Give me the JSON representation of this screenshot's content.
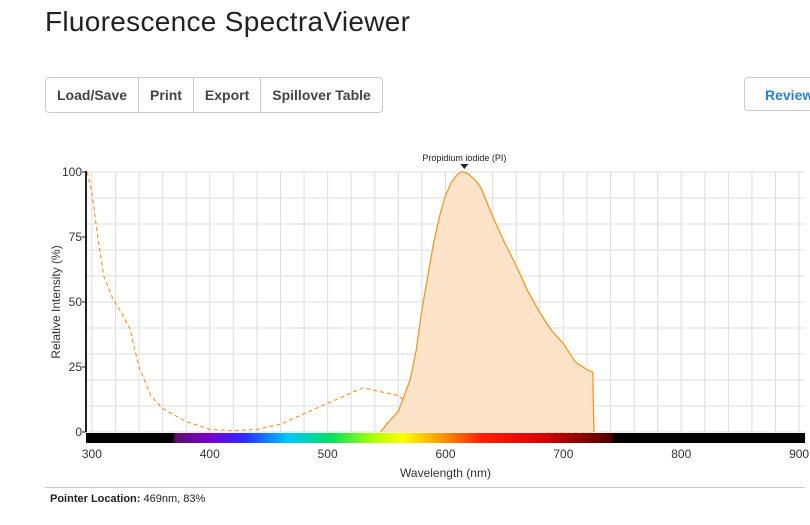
{
  "app": {
    "title": "Fluorescence SpectraViewer"
  },
  "toolbar": {
    "buttons": [
      "Load/Save",
      "Print",
      "Export",
      "Spillover Table"
    ],
    "review_label": "Review"
  },
  "pointer": {
    "label": "Pointer Location:",
    "value": "469nm, 83%"
  },
  "chart_data": {
    "type": "area",
    "xlabel": "Wavelength (nm)",
    "ylabel": "Relative Intensity (%)",
    "xlim": [
      295,
      905
    ],
    "ylim": [
      0,
      100
    ],
    "xticks": [
      300,
      400,
      500,
      600,
      700,
      800,
      900
    ],
    "yticks": [
      0,
      25,
      50,
      75,
      100
    ],
    "grid": true,
    "marker_label": "Propidium iodide (PI)",
    "marker_x": 616,
    "series_color": "#f0921e",
    "fill_color": "#fde3c8",
    "series": [
      {
        "style": "dashed",
        "x": [
          296,
          300,
          305,
          310,
          318,
          325,
          332,
          340,
          350,
          360,
          380,
          400,
          420,
          440,
          460,
          480,
          500,
          520,
          530,
          540,
          550,
          560,
          570,
          580,
          600,
          620,
          640,
          660,
          690,
          726
        ],
        "y": [
          100,
          92,
          75,
          60,
          51,
          46,
          40,
          25,
          14,
          9,
          4,
          1,
          0.5,
          1,
          3,
          7,
          11,
          15,
          17,
          16,
          15,
          14,
          10,
          7,
          4,
          2,
          1,
          0.5,
          0,
          0
        ]
      },
      {
        "style": "solid-filled",
        "x": [
          545,
          550,
          560,
          570,
          575,
          580,
          585,
          590,
          595,
          600,
          605,
          610,
          613,
          616,
          620,
          625,
          630,
          640,
          650,
          660,
          670,
          680,
          690,
          700,
          710,
          720,
          725,
          725.5,
          726
        ],
        "y": [
          0,
          3,
          8,
          20,
          31,
          47,
          60,
          73,
          83,
          91,
          96,
          99,
          100,
          100,
          99,
          97,
          94,
          83,
          73,
          64,
          54,
          46,
          39,
          34,
          27,
          24,
          23,
          10,
          0
        ]
      }
    ]
  }
}
